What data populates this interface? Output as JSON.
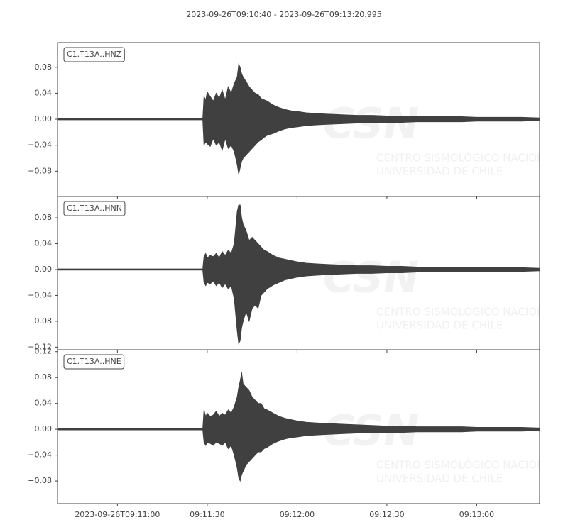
{
  "title": "2023-09-26T09:10:40  -  2023-09-26T09:13:20.995",
  "watermark": {
    "logo": "CSN",
    "line1": "CENTRO SISMOLÓGICO NACIONAL",
    "line2": "UNIVERSIDAD DE CHILE"
  },
  "chart_data": [
    {
      "type": "area",
      "label": "C1.T13A..HNZ",
      "color": "#404040",
      "ylim": [
        -0.119,
        0.118
      ],
      "yticks": [
        {
          "value": -0.08,
          "label": "−0.08"
        },
        {
          "value": -0.04,
          "label": "−0.04"
        },
        {
          "value": 0,
          "label": "0.00"
        },
        0.04,
        0.08
      ],
      "x": [
        0,
        20,
        40,
        48.5,
        48.9,
        49.5,
        50,
        51,
        52,
        53,
        54,
        55,
        56,
        57,
        58,
        59,
        60,
        60.5,
        61,
        61.5,
        62,
        63,
        64,
        65,
        66,
        67,
        68,
        69,
        70,
        72,
        74,
        76,
        78,
        80,
        83,
        86,
        90,
        95,
        100,
        105,
        110,
        115,
        120,
        125,
        130,
        135,
        140,
        145,
        150,
        155,
        160.995
      ],
      "upper": [
        0.001,
        0.001,
        0.001,
        0.001,
        0.035,
        0.03,
        0.042,
        0.035,
        0.028,
        0.04,
        0.032,
        0.045,
        0.03,
        0.05,
        0.04,
        0.055,
        0.065,
        0.085,
        0.08,
        0.07,
        0.065,
        0.058,
        0.05,
        0.045,
        0.04,
        0.038,
        0.032,
        0.03,
        0.028,
        0.022,
        0.018,
        0.015,
        0.013,
        0.012,
        0.01,
        0.009,
        0.008,
        0.007,
        0.006,
        0.006,
        0.005,
        0.005,
        0.004,
        0.004,
        0.004,
        0.004,
        0.003,
        0.003,
        0.003,
        0.003,
        0.002
      ],
      "lower": [
        -0.001,
        -0.001,
        -0.001,
        -0.001,
        -0.04,
        -0.035,
        -0.038,
        -0.042,
        -0.03,
        -0.04,
        -0.035,
        -0.048,
        -0.03,
        -0.045,
        -0.04,
        -0.05,
        -0.07,
        -0.085,
        -0.075,
        -0.065,
        -0.06,
        -0.055,
        -0.05,
        -0.045,
        -0.04,
        -0.035,
        -0.032,
        -0.028,
        -0.025,
        -0.022,
        -0.018,
        -0.015,
        -0.013,
        -0.012,
        -0.01,
        -0.009,
        -0.008,
        -0.007,
        -0.006,
        -0.006,
        -0.005,
        -0.005,
        -0.004,
        -0.004,
        -0.004,
        -0.004,
        -0.003,
        -0.003,
        -0.003,
        -0.003,
        -0.002
      ]
    },
    {
      "type": "area",
      "label": "C1.T13A..HNN",
      "color": "#404040",
      "ylim": [
        -0.124,
        0.113
      ],
      "yticks": [
        {
          "value": -0.12,
          "label": "−0.12"
        },
        {
          "value": -0.08,
          "label": "−0.08"
        },
        {
          "value": -0.04,
          "label": "−0.04"
        },
        {
          "value": 0,
          "label": "0.00"
        },
        0.04,
        0.08
      ],
      "x": [
        0,
        20,
        40,
        48.5,
        48.9,
        49.5,
        50,
        51,
        52,
        53,
        54,
        55,
        56,
        57,
        58,
        59,
        60,
        60.5,
        61,
        61.5,
        62,
        63,
        64,
        65,
        66,
        67,
        68,
        69,
        70,
        72,
        74,
        76,
        78,
        80,
        83,
        86,
        90,
        95,
        100,
        105,
        110,
        115,
        120,
        125,
        130,
        135,
        140,
        145,
        150,
        155,
        160.995
      ],
      "upper": [
        0.001,
        0.001,
        0.001,
        0.001,
        0.02,
        0.025,
        0.018,
        0.022,
        0.02,
        0.025,
        0.018,
        0.028,
        0.022,
        0.03,
        0.025,
        0.04,
        0.09,
        0.1,
        0.1,
        0.08,
        0.07,
        0.06,
        0.045,
        0.05,
        0.045,
        0.04,
        0.035,
        0.03,
        0.028,
        0.022,
        0.018,
        0.016,
        0.014,
        0.012,
        0.01,
        0.009,
        0.008,
        0.007,
        0.006,
        0.006,
        0.005,
        0.005,
        0.004,
        0.004,
        0.004,
        0.004,
        0.003,
        0.003,
        0.003,
        0.003,
        0.002
      ],
      "lower": [
        -0.001,
        -0.001,
        -0.001,
        -0.001,
        -0.02,
        -0.025,
        -0.02,
        -0.022,
        -0.018,
        -0.025,
        -0.02,
        -0.028,
        -0.022,
        -0.03,
        -0.025,
        -0.045,
        -0.095,
        -0.115,
        -0.11,
        -0.09,
        -0.08,
        -0.065,
        -0.08,
        -0.06,
        -0.055,
        -0.06,
        -0.04,
        -0.035,
        -0.03,
        -0.024,
        -0.02,
        -0.016,
        -0.014,
        -0.012,
        -0.01,
        -0.009,
        -0.008,
        -0.007,
        -0.006,
        -0.006,
        -0.005,
        -0.005,
        -0.004,
        -0.004,
        -0.004,
        -0.004,
        -0.003,
        -0.003,
        -0.003,
        -0.003,
        -0.002
      ]
    },
    {
      "type": "area",
      "label": "C1.T13A..HNE",
      "color": "#404040",
      "ylim": [
        -0.115,
        0.123
      ],
      "yticks": [
        {
          "value": -0.08,
          "label": "−0.08"
        },
        {
          "value": -0.04,
          "label": "−0.04"
        },
        {
          "value": 0,
          "label": "0.00"
        },
        0.04,
        0.08,
        0.12
      ],
      "x": [
        0,
        20,
        40,
        48.5,
        48.9,
        49.5,
        50,
        51,
        52,
        53,
        54,
        55,
        56,
        57,
        58,
        59,
        60,
        60.5,
        61,
        61.5,
        62,
        63,
        64,
        65,
        66,
        67,
        68,
        69,
        70,
        72,
        74,
        76,
        78,
        80,
        83,
        86,
        90,
        95,
        100,
        105,
        110,
        115,
        120,
        125,
        130,
        135,
        140,
        145,
        150,
        155,
        160.995
      ],
      "upper": [
        0.001,
        0.001,
        0.001,
        0.001,
        0.03,
        0.02,
        0.025,
        0.02,
        0.022,
        0.028,
        0.02,
        0.025,
        0.022,
        0.03,
        0.025,
        0.035,
        0.05,
        0.065,
        0.075,
        0.088,
        0.07,
        0.065,
        0.06,
        0.05,
        0.045,
        0.04,
        0.04,
        0.032,
        0.03,
        0.025,
        0.02,
        0.017,
        0.015,
        0.013,
        0.011,
        0.01,
        0.009,
        0.008,
        0.007,
        0.006,
        0.005,
        0.005,
        0.004,
        0.004,
        0.004,
        0.004,
        0.003,
        0.003,
        0.003,
        0.003,
        0.002
      ],
      "lower": [
        -0.001,
        -0.001,
        -0.001,
        -0.001,
        -0.02,
        -0.025,
        -0.02,
        -0.022,
        -0.025,
        -0.02,
        -0.022,
        -0.025,
        -0.02,
        -0.03,
        -0.025,
        -0.04,
        -0.06,
        -0.075,
        -0.08,
        -0.07,
        -0.065,
        -0.055,
        -0.05,
        -0.045,
        -0.04,
        -0.035,
        -0.035,
        -0.03,
        -0.028,
        -0.022,
        -0.018,
        -0.015,
        -0.013,
        -0.012,
        -0.01,
        -0.009,
        -0.008,
        -0.007,
        -0.006,
        -0.006,
        -0.005,
        -0.005,
        -0.004,
        -0.004,
        -0.004,
        -0.004,
        -0.003,
        -0.003,
        -0.003,
        -0.003,
        -0.002
      ],
      "xlim": [
        0,
        160.995
      ],
      "xticks": [
        {
          "value": 20,
          "label": "2023-09-26T09:11:00"
        },
        {
          "value": 50,
          "label": "09:11:30"
        },
        {
          "value": 80,
          "label": "09:12:00"
        },
        {
          "value": 110,
          "label": "09:12:30"
        },
        {
          "value": 140,
          "label": "09:13:00"
        }
      ]
    }
  ]
}
